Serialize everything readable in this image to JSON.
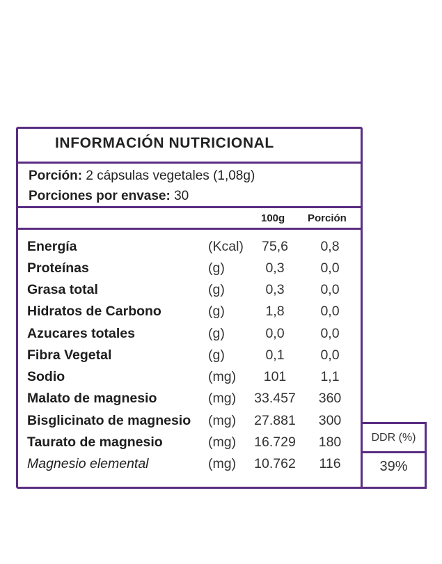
{
  "title": "INFORMACIÓN NUTRICIONAL",
  "serving": {
    "portion_label": "Porción:",
    "portion_value": "2 cápsulas vegetales (1,08g)",
    "per_container_label": "Porciones por envase:",
    "per_container_value": "30"
  },
  "columns": {
    "per100": "100g",
    "portion": "Porción"
  },
  "rows": [
    {
      "name": "Energía",
      "unit": "(Kcal)",
      "per100": "75,6",
      "portion": "0,8"
    },
    {
      "name": "Proteínas",
      "unit": "(g)",
      "per100": "0,3",
      "portion": "0,0"
    },
    {
      "name": "Grasa total",
      "unit": "(g)",
      "per100": "0,3",
      "portion": "0,0"
    },
    {
      "name": "Hidratos de Carbono",
      "unit": "(g)",
      "per100": "1,8",
      "portion": "0,0"
    },
    {
      "name": "Azucares totales",
      "unit": "(g)",
      "per100": "0,0",
      "portion": "0,0"
    },
    {
      "name": "Fibra Vegetal",
      "unit": "(g)",
      "per100": "0,1",
      "portion": "0,0"
    },
    {
      "name": "Sodio",
      "unit": "(mg)",
      "per100": "101",
      "portion": "1,1"
    },
    {
      "name": "Malato de magnesio",
      "unit": "(mg)",
      "per100": "33.457",
      "portion": "360"
    },
    {
      "name": "Bisglicinato de magnesio",
      "unit": "(mg)",
      "per100": "27.881",
      "portion": "300"
    },
    {
      "name": "Taurato de magnesio",
      "unit": "(mg)",
      "per100": "16.729",
      "portion": "180"
    },
    {
      "name": "Magnesio elemental",
      "unit": "(mg)",
      "per100": "10.762",
      "portion": "116"
    }
  ],
  "ddr": {
    "label": "DDR (%)",
    "value": "39%"
  },
  "colors": {
    "border": "#5b2d82",
    "text": "#1e1e1e"
  }
}
